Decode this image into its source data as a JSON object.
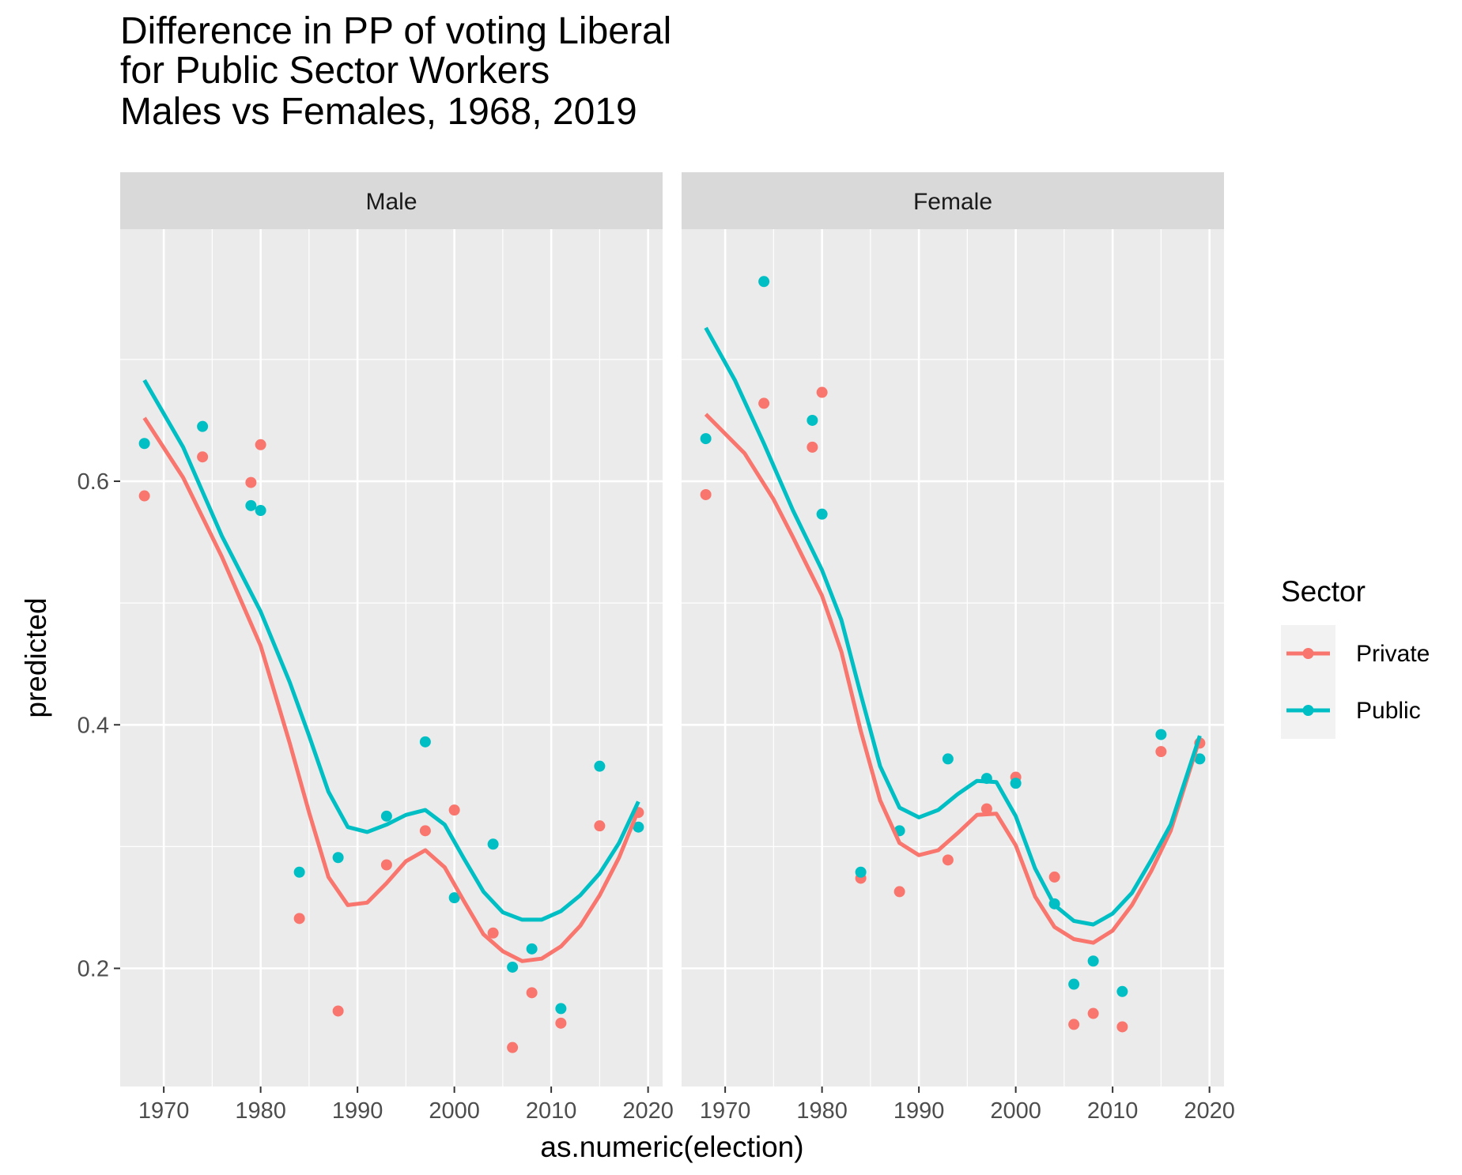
{
  "chart_data": {
    "type": "scatter",
    "title_lines": [
      "Difference in PP of voting Liberal",
      "for Public Sector Workers",
      "Males vs Females, 1968, 2019"
    ],
    "xlabel": "as.numeric(election)",
    "ylabel": "predicted",
    "xlim": [
      1965.5,
      2021.5
    ],
    "ylim": [
      0.103,
      0.807
    ],
    "x_ticks": [
      1970,
      1980,
      1990,
      2000,
      2010,
      2020
    ],
    "x_tick_labels": [
      "1970",
      "1980",
      "1990",
      "2000",
      "2010",
      "2020"
    ],
    "y_ticks": [
      0.2,
      0.4,
      0.6
    ],
    "y_tick_labels": [
      "0.2",
      "0.4",
      "0.6"
    ],
    "grid": true,
    "legend": {
      "title": "Sector",
      "position": "right",
      "entries": [
        {
          "label": "Private",
          "color": "#F8766D"
        },
        {
          "label": "Public",
          "color": "#00BFC4"
        }
      ]
    },
    "facets": [
      {
        "label": "Male",
        "series": [
          {
            "name": "Private",
            "color": "#F8766D",
            "points": [
              [
                1968,
                0.588
              ],
              [
                1974,
                0.62
              ],
              [
                1979,
                0.599
              ],
              [
                1980,
                0.63
              ],
              [
                1984,
                0.241
              ],
              [
                1988,
                0.165
              ],
              [
                1993,
                0.285
              ],
              [
                1997,
                0.313
              ],
              [
                2000,
                0.33
              ],
              [
                2004,
                0.229
              ],
              [
                2006,
                0.135
              ],
              [
                2008,
                0.18
              ],
              [
                2011,
                0.155
              ],
              [
                2015,
                0.317
              ],
              [
                2019,
                0.328
              ]
            ],
            "smooth": [
              [
                1968,
                0.652
              ],
              [
                1972,
                0.603
              ],
              [
                1976,
                0.538
              ],
              [
                1980,
                0.465
              ],
              [
                1983,
                0.385
              ],
              [
                1985,
                0.328
              ],
              [
                1987,
                0.275
              ],
              [
                1989,
                0.252
              ],
              [
                1991,
                0.254
              ],
              [
                1993,
                0.27
              ],
              [
                1995,
                0.288
              ],
              [
                1997,
                0.297
              ],
              [
                1999,
                0.283
              ],
              [
                2001,
                0.255
              ],
              [
                2003,
                0.228
              ],
              [
                2005,
                0.214
              ],
              [
                2007,
                0.206
              ],
              [
                2009,
                0.208
              ],
              [
                2011,
                0.218
              ],
              [
                2013,
                0.235
              ],
              [
                2015,
                0.26
              ],
              [
                2017,
                0.291
              ],
              [
                2019,
                0.33
              ]
            ]
          },
          {
            "name": "Public",
            "color": "#00BFC4",
            "points": [
              [
                1968,
                0.631
              ],
              [
                1974,
                0.645
              ],
              [
                1979,
                0.58
              ],
              [
                1980,
                0.576
              ],
              [
                1984,
                0.279
              ],
              [
                1988,
                0.291
              ],
              [
                1993,
                0.325
              ],
              [
                1997,
                0.386
              ],
              [
                2000,
                0.258
              ],
              [
                2004,
                0.302
              ],
              [
                2006,
                0.201
              ],
              [
                2008,
                0.216
              ],
              [
                2011,
                0.167
              ],
              [
                2015,
                0.366
              ],
              [
                2019,
                0.316
              ]
            ],
            "smooth": [
              [
                1968,
                0.683
              ],
              [
                1972,
                0.628
              ],
              [
                1976,
                0.555
              ],
              [
                1980,
                0.493
              ],
              [
                1983,
                0.435
              ],
              [
                1985,
                0.391
              ],
              [
                1987,
                0.345
              ],
              [
                1989,
                0.316
              ],
              [
                1991,
                0.312
              ],
              [
                1993,
                0.318
              ],
              [
                1995,
                0.326
              ],
              [
                1997,
                0.33
              ],
              [
                1999,
                0.318
              ],
              [
                2001,
                0.29
              ],
              [
                2003,
                0.263
              ],
              [
                2005,
                0.246
              ],
              [
                2007,
                0.24
              ],
              [
                2009,
                0.24
              ],
              [
                2011,
                0.247
              ],
              [
                2013,
                0.26
              ],
              [
                2015,
                0.278
              ],
              [
                2017,
                0.303
              ],
              [
                2019,
                0.337
              ]
            ]
          }
        ]
      },
      {
        "label": "Female",
        "series": [
          {
            "name": "Private",
            "color": "#F8766D",
            "points": [
              [
                1968,
                0.589
              ],
              [
                1974,
                0.664
              ],
              [
                1979,
                0.628
              ],
              [
                1980,
                0.673
              ],
              [
                1984,
                0.274
              ],
              [
                1988,
                0.263
              ],
              [
                1993,
                0.289
              ],
              [
                1997,
                0.331
              ],
              [
                2000,
                0.357
              ],
              [
                2004,
                0.275
              ],
              [
                2006,
                0.154
              ],
              [
                2008,
                0.163
              ],
              [
                2011,
                0.152
              ],
              [
                2015,
                0.378
              ],
              [
                2019,
                0.385
              ]
            ],
            "smooth": [
              [
                1968,
                0.655
              ],
              [
                1972,
                0.623
              ],
              [
                1975,
                0.585
              ],
              [
                1977,
                0.554
              ],
              [
                1980,
                0.506
              ],
              [
                1982,
                0.46
              ],
              [
                1984,
                0.395
              ],
              [
                1986,
                0.338
              ],
              [
                1988,
                0.303
              ],
              [
                1990,
                0.293
              ],
              [
                1992,
                0.297
              ],
              [
                1994,
                0.311
              ],
              [
                1996,
                0.326
              ],
              [
                1998,
                0.327
              ],
              [
                2000,
                0.301
              ],
              [
                2002,
                0.259
              ],
              [
                2004,
                0.234
              ],
              [
                2006,
                0.224
              ],
              [
                2008,
                0.221
              ],
              [
                2010,
                0.231
              ],
              [
                2012,
                0.252
              ],
              [
                2014,
                0.28
              ],
              [
                2016,
                0.313
              ],
              [
                2019,
                0.389
              ]
            ]
          },
          {
            "name": "Public",
            "color": "#00BFC4",
            "points": [
              [
                1968,
                0.635
              ],
              [
                1974,
                0.764
              ],
              [
                1979,
                0.65
              ],
              [
                1980,
                0.573
              ],
              [
                1984,
                0.279
              ],
              [
                1988,
                0.313
              ],
              [
                1993,
                0.372
              ],
              [
                1997,
                0.356
              ],
              [
                2000,
                0.352
              ],
              [
                2004,
                0.253
              ],
              [
                2006,
                0.187
              ],
              [
                2008,
                0.206
              ],
              [
                2011,
                0.181
              ],
              [
                2015,
                0.392
              ],
              [
                2019,
                0.372
              ]
            ],
            "smooth": [
              [
                1968,
                0.726
              ],
              [
                1971,
                0.683
              ],
              [
                1974,
                0.631
              ],
              [
                1977,
                0.576
              ],
              [
                1980,
                0.527
              ],
              [
                1982,
                0.486
              ],
              [
                1984,
                0.425
              ],
              [
                1986,
                0.366
              ],
              [
                1988,
                0.332
              ],
              [
                1990,
                0.324
              ],
              [
                1992,
                0.33
              ],
              [
                1994,
                0.343
              ],
              [
                1996,
                0.354
              ],
              [
                1998,
                0.353
              ],
              [
                2000,
                0.325
              ],
              [
                2002,
                0.282
              ],
              [
                2004,
                0.252
              ],
              [
                2006,
                0.239
              ],
              [
                2008,
                0.236
              ],
              [
                2010,
                0.245
              ],
              [
                2012,
                0.262
              ],
              [
                2014,
                0.289
              ],
              [
                2016,
                0.318
              ],
              [
                2019,
                0.391
              ]
            ]
          }
        ]
      }
    ]
  }
}
